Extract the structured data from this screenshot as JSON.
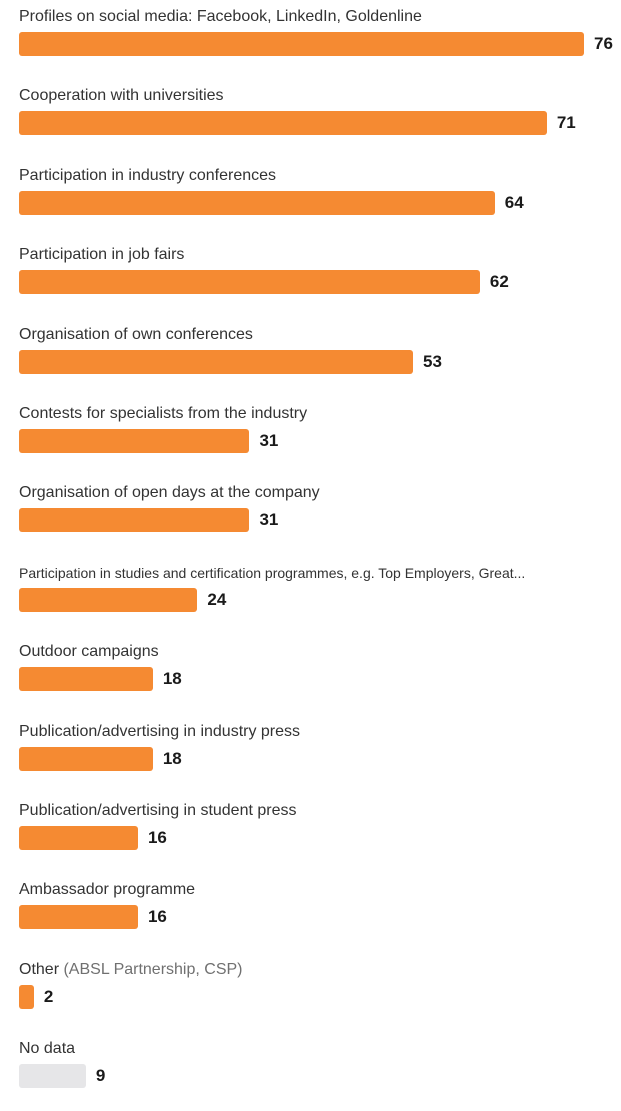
{
  "colors": {
    "bar": "#f58a32",
    "no_data_bar": "#e6e6e8"
  },
  "chart_data": {
    "type": "bar",
    "orientation": "horizontal",
    "title": "",
    "xlabel": "",
    "ylabel": "",
    "grid": false,
    "legend": "none",
    "xlim": [
      0,
      76
    ],
    "categories": [
      {
        "label": "Profiles on social media: Facebook, LinkedIn, Goldenline",
        "note": ""
      },
      {
        "label": "Cooperation with universities",
        "note": ""
      },
      {
        "label": "Participation in industry conferences",
        "note": ""
      },
      {
        "label": "Participation in job fairs",
        "note": ""
      },
      {
        "label": "Organisation of own conferences",
        "note": ""
      },
      {
        "label": "Contests for specialists from the industry",
        "note": ""
      },
      {
        "label": "Organisation of open days at the company",
        "note": ""
      },
      {
        "label": "Participation in studies and certification programmes, e.g. Top Employers, Great...",
        "note": ""
      },
      {
        "label": "Outdoor campaigns",
        "note": ""
      },
      {
        "label": "Publication/advertising in industry press",
        "note": ""
      },
      {
        "label": "Publication/advertising in student press",
        "note": ""
      },
      {
        "label": "Ambassador programme",
        "note": ""
      },
      {
        "label": "Other",
        "note": "(ABSL Partnership, CSP)"
      },
      {
        "label": "No data",
        "note": ""
      }
    ],
    "values": [
      76,
      71,
      64,
      62,
      53,
      31,
      31,
      24,
      18,
      18,
      16,
      16,
      2,
      9
    ]
  }
}
